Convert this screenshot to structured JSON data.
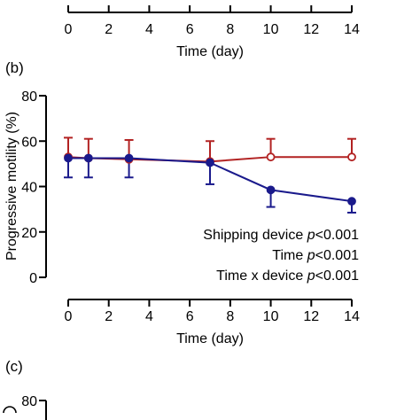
{
  "top_panel": {
    "xlabel": "Time (day)",
    "x_ticks": [
      "0",
      "2",
      "4",
      "6",
      "8",
      "10",
      "12",
      "14"
    ]
  },
  "chart_data": {
    "type": "line",
    "panel_label": "(b)",
    "xlabel": "Time (day)",
    "ylabel": "Progressive motility (%)",
    "xlim": [
      0,
      14
    ],
    "ylim": [
      0,
      80
    ],
    "x_ticks": [
      0,
      2,
      4,
      6,
      8,
      10,
      12,
      14
    ],
    "y_ticks": [
      0,
      20,
      40,
      60,
      80
    ],
    "grid": false,
    "series": [
      {
        "color": "#b22222",
        "marker": "open-circle",
        "x": [
          0,
          1,
          3,
          7,
          10,
          14
        ],
        "y": [
          53,
          52.5,
          52,
          51,
          53,
          53
        ],
        "error": [
          8.5,
          8.5,
          8.5,
          9,
          8,
          8
        ],
        "error_direction": "up"
      },
      {
        "color": "#1a1a8c",
        "marker": "filled-circle",
        "x": [
          0,
          1,
          3,
          7,
          10,
          14
        ],
        "y": [
          52.5,
          52.5,
          52.5,
          50.5,
          38.5,
          33.5
        ],
        "error": [
          8.5,
          8.5,
          8.5,
          9.5,
          7.5,
          5
        ],
        "error_direction": "down"
      }
    ],
    "annotations": [
      {
        "prefix": "Shipping device ",
        "italic": "p",
        "suffix": "<0.001"
      },
      {
        "prefix": "Time ",
        "italic": "p",
        "suffix": "<0.001"
      },
      {
        "prefix": "Time x device ",
        "italic": "p",
        "suffix": "<0.001"
      }
    ]
  },
  "bottom_panel": {
    "panel_label": "(c)",
    "y_tick_visible": "80"
  }
}
